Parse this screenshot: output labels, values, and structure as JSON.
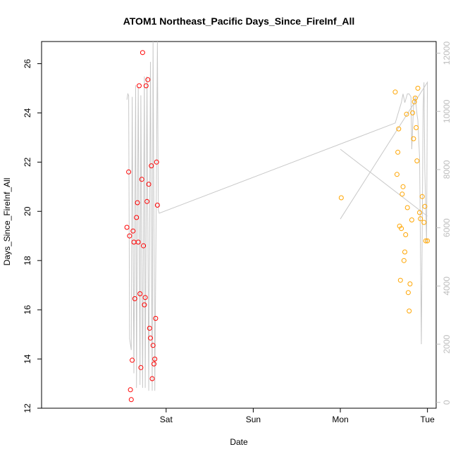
{
  "chart_data": {
    "type": "scatter",
    "title": "ATOM1 Northeast_Pacific Days_Since_FireInf_All",
    "xlabel": "Date",
    "ylabel": "Days_Since_FireInf_All",
    "x_ticks": [
      "Sat",
      "Sun",
      "Mon",
      "Tue"
    ],
    "x_tick_values": [
      2.0,
      3.0,
      4.0,
      5.0
    ],
    "xlim": [
      0.57,
      5.1
    ],
    "ylim": [
      12.0,
      26.9
    ],
    "y_ticks": [
      12,
      14,
      16,
      18,
      20,
      22,
      24,
      26
    ],
    "y2lim": [
      -200,
      12400
    ],
    "y2_ticks": [
      0,
      2000,
      4000,
      6000,
      8000,
      10000,
      12000
    ],
    "grid": false,
    "legend": "none",
    "colors": {
      "series_a": "#ff0000",
      "series_b": "#ffa500",
      "line": "#c8c8c8",
      "right_axis": "#bdbdbd"
    },
    "series": [
      {
        "color": "#ff0000",
        "marker": "open-circle",
        "x": [
          1.55,
          1.57,
          1.58,
          1.59,
          1.6,
          1.61,
          1.62,
          1.63,
          1.64,
          1.66,
          1.67,
          1.68,
          1.69,
          1.7,
          1.71,
          1.72,
          1.73,
          1.74,
          1.75,
          1.76,
          1.77,
          1.78,
          1.79,
          1.8,
          1.81,
          1.82,
          1.83,
          1.84,
          1.85,
          1.86,
          1.87,
          1.88,
          1.89,
          1.9
        ],
        "y": [
          19.35,
          21.6,
          19.0,
          12.75,
          12.35,
          13.95,
          19.2,
          18.75,
          16.45,
          19.75,
          20.35,
          18.75,
          25.1,
          16.65,
          13.65,
          21.3,
          26.45,
          18.6,
          16.2,
          16.5,
          25.1,
          20.4,
          25.35,
          21.1,
          15.25,
          14.85,
          21.85,
          13.2,
          14.55,
          13.8,
          14.0,
          15.65,
          22.0,
          20.25
        ]
      },
      {
        "color": "#ffa500",
        "marker": "open-circle",
        "x": [
          4.01,
          4.63,
          4.65,
          4.66,
          4.67,
          4.68,
          4.69,
          4.7,
          4.71,
          4.72,
          4.73,
          4.74,
          4.75,
          4.76,
          4.77,
          4.78,
          4.79,
          4.8,
          4.82,
          4.83,
          4.84,
          4.85,
          4.86,
          4.87,
          4.88,
          4.89,
          4.91,
          4.92,
          4.94,
          4.96,
          4.97,
          4.98,
          5.0
        ],
        "y": [
          20.55,
          24.85,
          21.5,
          22.4,
          23.35,
          19.4,
          17.2,
          19.3,
          20.7,
          21.0,
          18.0,
          18.35,
          19.05,
          23.95,
          20.15,
          16.7,
          15.95,
          17.05,
          19.65,
          24.0,
          22.95,
          24.45,
          24.6,
          23.4,
          22.05,
          25.0,
          19.95,
          19.7,
          20.6,
          19.55,
          20.2,
          18.8,
          18.8
        ]
      }
    ],
    "secondary_line": {
      "color": "#c8c8c8",
      "axis": "right",
      "x": [
        1.55,
        1.56,
        1.57,
        1.58,
        1.6,
        1.61,
        1.63,
        1.65,
        1.66,
        1.68,
        1.7,
        1.71,
        1.73,
        1.75,
        1.76,
        1.78,
        1.8,
        1.82,
        1.84,
        1.85,
        1.87,
        1.9,
        1.91,
        1.92,
        4.63,
        4.65,
        4.66,
        4.68,
        4.7,
        4.72,
        4.74,
        4.77,
        4.79,
        4.81,
        4.82,
        4.84,
        4.86,
        4.88,
        4.89,
        4.91,
        4.93,
        4.95,
        4.96,
        4.97,
        4.99,
        5.0,
        4.0
      ],
      "y": [
        10400,
        10600,
        10550,
        2200,
        1800,
        10500,
        1000,
        10900,
        500,
        10850,
        600,
        10550,
        500,
        11200,
        500,
        11200,
        400,
        11700,
        400,
        12400,
        400,
        12400,
        6600,
        6500,
        9600,
        9800,
        9900,
        10100,
        10300,
        10600,
        10300,
        10600,
        10600,
        10500,
        8700,
        10200,
        10500,
        9900,
        9700,
        8400,
        2000,
        10100,
        11000,
        8000,
        5500,
        11000,
        6300
      ]
    },
    "secondary_line2": {
      "color": "#c8c8c8",
      "axis": "right",
      "x": [
        4.0,
        5.0
      ],
      "y": [
        8700,
        6400
      ]
    }
  }
}
